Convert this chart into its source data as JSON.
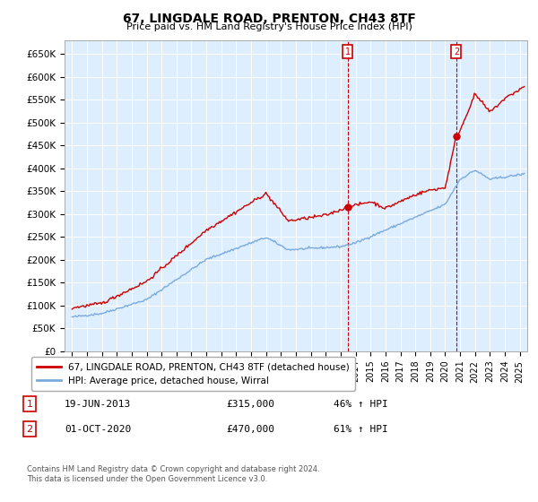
{
  "title": "67, LINGDALE ROAD, PRENTON, CH43 8TF",
  "subtitle": "Price paid vs. HM Land Registry's House Price Index (HPI)",
  "ylabel_ticks": [
    "£0",
    "£50K",
    "£100K",
    "£150K",
    "£200K",
    "£250K",
    "£300K",
    "£350K",
    "£400K",
    "£450K",
    "£500K",
    "£550K",
    "£600K",
    "£650K"
  ],
  "ylim": [
    0,
    680000
  ],
  "xlim_start": 1994.5,
  "xlim_end": 2025.5,
  "red_line_color": "#cc0000",
  "blue_line_color": "#7aaadd",
  "bg_color": "#ddeeff",
  "grid_color": "#ffffff",
  "marker1_date": 2013.47,
  "marker1_value": 315000,
  "marker2_date": 2020.75,
  "marker2_value": 470000,
  "legend_label1": "67, LINGDALE ROAD, PRENTON, CH43 8TF (detached house)",
  "legend_label2": "HPI: Average price, detached house, Wirral",
  "note1_label": "1",
  "note1_date": "19-JUN-2013",
  "note1_price": "£315,000",
  "note1_hpi": "46% ↑ HPI",
  "note2_label": "2",
  "note2_date": "01-OCT-2020",
  "note2_price": "£470,000",
  "note2_hpi": "61% ↑ HPI",
  "footnote": "Contains HM Land Registry data © Crown copyright and database right 2024.\nThis data is licensed under the Open Government Licence v3.0."
}
